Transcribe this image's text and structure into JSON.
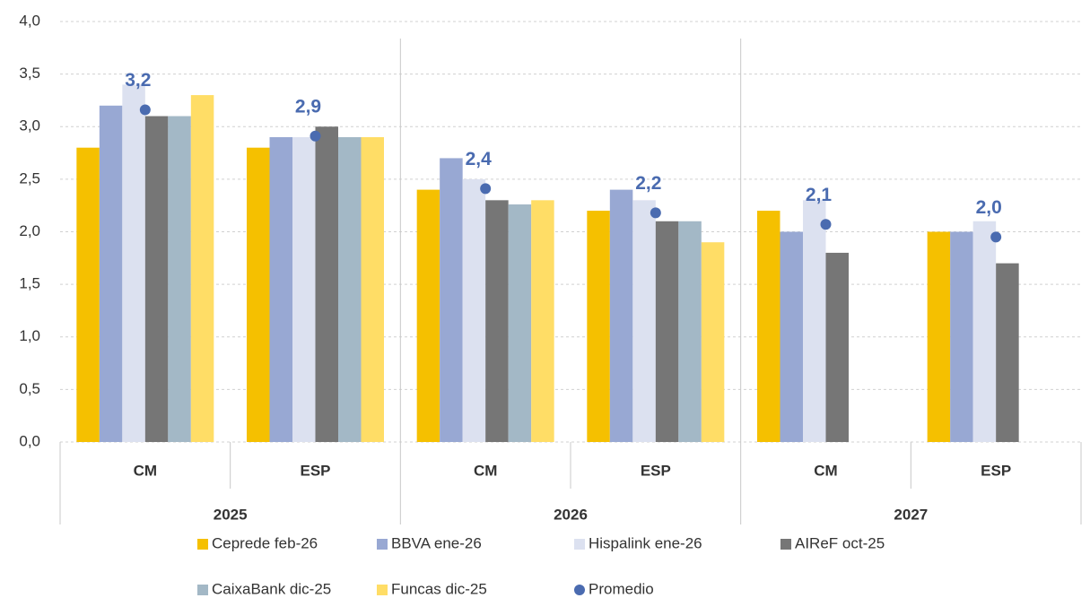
{
  "chart_data": {
    "type": "bar",
    "categories": [
      "CM",
      "ESP",
      "CM",
      "ESP",
      "CM",
      "ESP"
    ],
    "category_groups": [
      "2025",
      "2026",
      "2027"
    ],
    "ylim": [
      0,
      4
    ],
    "yticks": [
      {
        "value": 0,
        "label": "0,0"
      },
      {
        "value": 0.5,
        "label": "0,5"
      },
      {
        "value": 1,
        "label": "1,0"
      },
      {
        "value": 1.5,
        "label": "1,5"
      },
      {
        "value": 2,
        "label": "2,0"
      },
      {
        "value": 2.5,
        "label": "2,5"
      },
      {
        "value": 3,
        "label": "3,0"
      },
      {
        "value": 3.5,
        "label": "3,5"
      },
      {
        "value": 4,
        "label": "4,0"
      }
    ],
    "grid": true,
    "legend": "bottom",
    "series": [
      {
        "name": "Ceprede feb-26",
        "color": "#f5c000",
        "values": [
          2.8,
          2.8,
          2.4,
          2.2,
          2.2,
          2.0
        ]
      },
      {
        "name": "BBVA ene-26",
        "color": "#98a8d3",
        "values": [
          3.2,
          2.9,
          2.7,
          2.4,
          2.0,
          2.0
        ]
      },
      {
        "name": "Hispalink ene-26",
        "color": "#dce1f0",
        "values": [
          3.4,
          2.9,
          2.5,
          2.3,
          2.3,
          2.1
        ]
      },
      {
        "name": "AIReF oct-25",
        "color": "#767676",
        "values": [
          3.1,
          3.0,
          2.3,
          2.1,
          1.8,
          1.7
        ]
      },
      {
        "name": "CaixaBank dic-25",
        "color": "#a3b8c6",
        "values": [
          3.1,
          2.9,
          2.26,
          2.1,
          null,
          null
        ]
      },
      {
        "name": "Funcas dic-25",
        "color": "#ffdd66",
        "values": [
          3.3,
          2.9,
          2.3,
          1.9,
          null,
          null
        ]
      },
      {
        "name": "Promedio",
        "type": "scatter",
        "color": "#4a6bb0",
        "values": [
          3.16,
          2.91,
          2.41,
          2.18,
          2.07,
          1.95
        ],
        "value_labels": [
          "3,2",
          "2,9",
          "2,4",
          "2,2",
          "2,1",
          "2,0"
        ]
      }
    ]
  }
}
